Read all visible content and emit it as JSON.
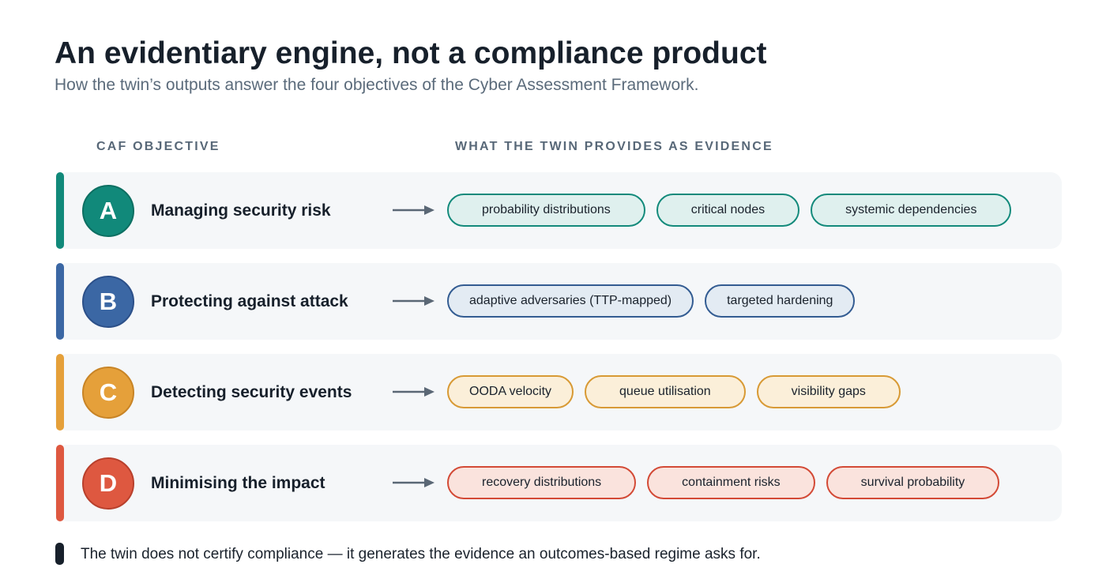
{
  "header": {
    "title": "An evidentiary engine, not a compliance product",
    "subtitle": "How the twin’s outputs answer the four objectives of the Cyber Assessment Framework."
  },
  "columns": {
    "objective": "CAF OBJECTIVE",
    "evidence": "WHAT THE TWIN PROVIDES AS EVIDENCE"
  },
  "objectives": [
    {
      "letter": "A",
      "label": "Managing security risk",
      "color": "#11897a",
      "evidence": [
        "probability distributions",
        "critical nodes",
        "systemic dependencies"
      ]
    },
    {
      "letter": "B",
      "label": "Protecting against attack",
      "color": "#3b67a4",
      "evidence": [
        "adaptive adversaries (TTP-mapped)",
        "targeted hardening"
      ]
    },
    {
      "letter": "C",
      "label": "Detecting security events",
      "color": "#e5a03a",
      "evidence": [
        "OODA velocity",
        "queue utilisation",
        "visibility gaps"
      ]
    },
    {
      "letter": "D",
      "label": "Minimising the impact",
      "color": "#de5840",
      "evidence": [
        "recovery distributions",
        "containment risks",
        "survival probability"
      ]
    }
  ],
  "footer": {
    "note": "The twin does not certify compliance — it generates the evidence an outcomes-based regime asks for."
  },
  "icons": {
    "arrow": "arrow-right-icon",
    "footer_marker": "note-marker-icon"
  }
}
